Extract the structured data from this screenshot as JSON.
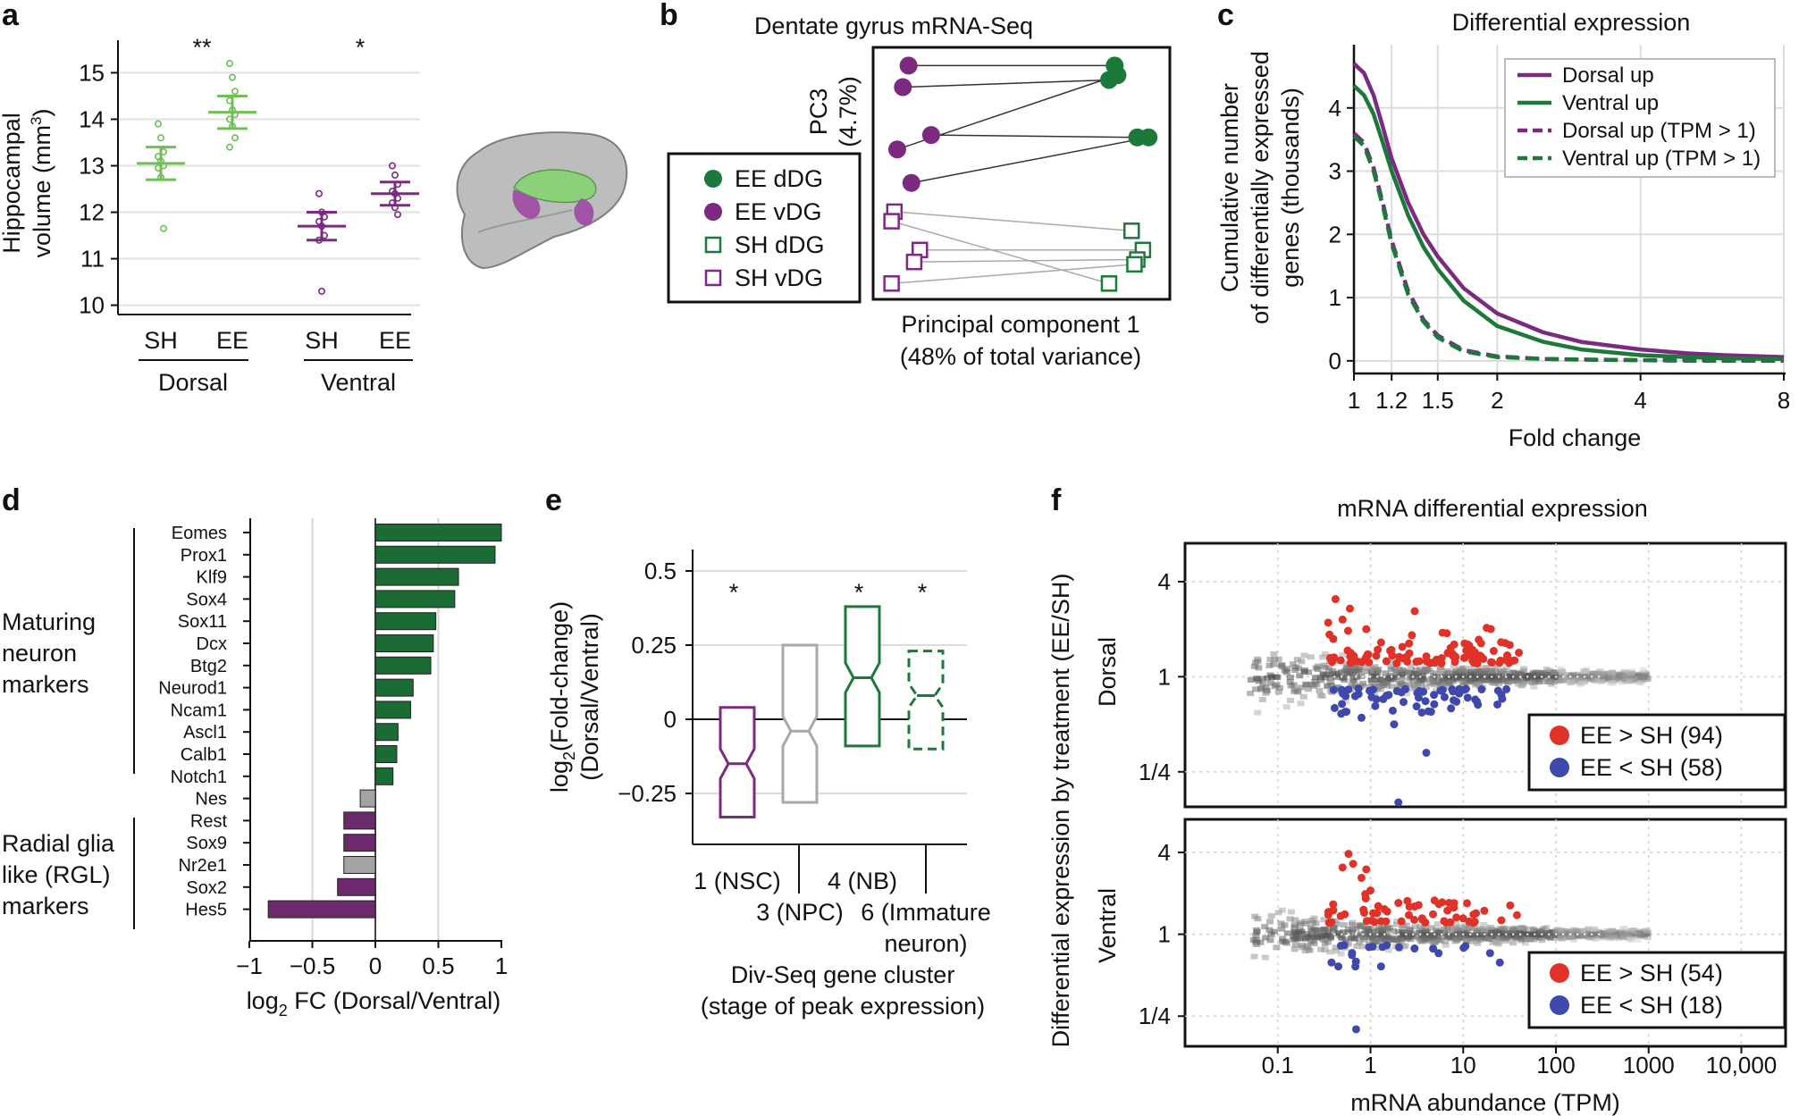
{
  "panel_letters": {
    "a": "a",
    "b": "b",
    "c": "c",
    "d": "d",
    "e": "e",
    "f": "f"
  },
  "chart_data": [
    {
      "panel": "a",
      "type": "scatter",
      "title": "",
      "ylabel_line1": "Hippocampal",
      "ylabel_line2": "volume (mm",
      "ylabel_sup": "3",
      "ylabel_close": ")",
      "ylim": [
        9.8,
        15.7
      ],
      "yticks": [
        10,
        11,
        12,
        13,
        14,
        15
      ],
      "categories": [
        "SH",
        "EE",
        "SH",
        "EE"
      ],
      "group_labels": [
        "Dorsal",
        "Ventral"
      ],
      "significance": [
        "**",
        "*"
      ],
      "colors": {
        "dorsal": "#6fbf57",
        "ventral": "#7a2a7f"
      },
      "groups": [
        {
          "name": "Dorsal SH",
          "mean": 13.05,
          "err": 0.35,
          "points": [
            13.9,
            13.6,
            13.3,
            13.2,
            13.1,
            13.0,
            12.95,
            12.75,
            11.65
          ]
        },
        {
          "name": "Dorsal EE",
          "mean": 14.15,
          "err": 0.35,
          "points": [
            15.2,
            14.9,
            14.6,
            14.4,
            14.2,
            14.1,
            14.0,
            13.85,
            13.6,
            13.4
          ]
        },
        {
          "name": "Ventral SH",
          "mean": 11.7,
          "err": 0.3,
          "points": [
            12.4,
            12.0,
            11.9,
            11.8,
            11.7,
            11.5,
            11.4,
            10.3
          ]
        },
        {
          "name": "Ventral EE",
          "mean": 12.4,
          "err": 0.25,
          "points": [
            13.0,
            12.8,
            12.6,
            12.45,
            12.4,
            12.3,
            12.2,
            12.1,
            11.95
          ]
        }
      ]
    },
    {
      "panel": "b",
      "type": "scatter",
      "title": "Dentate gyrus mRNA-Seq",
      "xlabel_line1": "Principal component 1",
      "xlabel_line2": "(48% of total variance)",
      "ylabel_line1": "PC3",
      "ylabel_line2": "(4.7%)",
      "legend": [
        {
          "label": "EE dDG",
          "color": "#1b7a3a",
          "marker": "filled-circle"
        },
        {
          "label": "EE vDG",
          "color": "#7a2a7f",
          "marker": "filled-circle"
        },
        {
          "label": "SH dDG",
          "color": "#1b7a3a",
          "marker": "open-square"
        },
        {
          "label": "SH vDG",
          "color": "#7a2a7f",
          "marker": "open-square"
        }
      ],
      "xlim": [
        0,
        10
      ],
      "ylim": [
        0,
        10
      ],
      "series": [
        {
          "name": "EE dDG",
          "points": [
            [
              8.3,
              9.5
            ],
            [
              8.1,
              8.9
            ],
            [
              8.4,
              9.1
            ],
            [
              9.1,
              6.5
            ],
            [
              9.5,
              6.5
            ]
          ]
        },
        {
          "name": "EE vDG",
          "points": [
            [
              1.0,
              9.5
            ],
            [
              0.8,
              8.6
            ],
            [
              0.6,
              6.0
            ],
            [
              1.8,
              6.6
            ],
            [
              1.1,
              4.6
            ]
          ]
        },
        {
          "name": "SH dDG",
          "points": [
            [
              8.9,
              2.6
            ],
            [
              9.3,
              1.8
            ],
            [
              9.1,
              1.4
            ],
            [
              8.1,
              0.4
            ],
            [
              9.0,
              1.2
            ]
          ]
        },
        {
          "name": "SH vDG",
          "points": [
            [
              0.5,
              3.4
            ],
            [
              0.4,
              3.0
            ],
            [
              1.4,
              1.8
            ],
            [
              1.2,
              1.3
            ],
            [
              0.4,
              0.4
            ]
          ]
        }
      ],
      "pairs": [
        [
          [
            1.0,
            9.5
          ],
          [
            8.3,
            9.5
          ]
        ],
        [
          [
            0.8,
            8.6
          ],
          [
            8.1,
            8.9
          ]
        ],
        [
          [
            0.6,
            6.0
          ],
          [
            8.4,
            9.1
          ]
        ],
        [
          [
            1.8,
            6.6
          ],
          [
            9.1,
            6.5
          ]
        ],
        [
          [
            1.1,
            4.6
          ],
          [
            9.5,
            6.5
          ]
        ],
        [
          [
            0.5,
            3.4
          ],
          [
            8.9,
            2.6
          ]
        ],
        [
          [
            0.4,
            3.0
          ],
          [
            8.1,
            0.4
          ]
        ],
        [
          [
            1.4,
            1.8
          ],
          [
            9.3,
            1.8
          ]
        ],
        [
          [
            1.2,
            1.3
          ],
          [
            9.1,
            1.4
          ]
        ],
        [
          [
            0.4,
            0.4
          ],
          [
            9.0,
            1.2
          ]
        ]
      ]
    },
    {
      "panel": "c",
      "type": "line",
      "title": "Differential expression",
      "xlabel": "Fold change",
      "ylabel_line1": "Cumulative number",
      "ylabel_line2": "of differentially expressed",
      "ylabel_line3": "genes (thousands)",
      "xscale": "log",
      "xlim": [
        1,
        8
      ],
      "ylim": [
        -0.2,
        5.0
      ],
      "xticks": [
        1,
        1.2,
        1.5,
        2,
        4,
        8
      ],
      "yticks": [
        0,
        1,
        2,
        3,
        4
      ],
      "x": [
        1.0,
        1.05,
        1.1,
        1.15,
        1.2,
        1.3,
        1.4,
        1.5,
        1.7,
        2.0,
        2.5,
        3.0,
        4.0,
        5.0,
        6.0,
        8.0
      ],
      "series": [
        {
          "name": "Dorsal up",
          "color": "#7a2a7f",
          "dashed": false,
          "values": [
            4.7,
            4.55,
            4.2,
            3.7,
            3.2,
            2.5,
            2.0,
            1.65,
            1.15,
            0.75,
            0.45,
            0.3,
            0.18,
            0.12,
            0.09,
            0.06
          ]
        },
        {
          "name": "Ventral up",
          "color": "#1b7a3a",
          "dashed": false,
          "values": [
            4.35,
            4.2,
            3.9,
            3.45,
            3.0,
            2.3,
            1.8,
            1.45,
            0.95,
            0.55,
            0.3,
            0.18,
            0.09,
            0.06,
            0.04,
            0.03
          ]
        },
        {
          "name": "Dorsal up (TPM > 1)",
          "color": "#7a2a7f",
          "dashed": true,
          "values": [
            3.6,
            3.45,
            3.05,
            2.5,
            1.9,
            1.1,
            0.65,
            0.4,
            0.17,
            0.07,
            0.03,
            0.02,
            0.01,
            0.01,
            0.0,
            0.0
          ]
        },
        {
          "name": "Ventral up (TPM > 1)",
          "color": "#1b7a3a",
          "dashed": true,
          "values": [
            3.55,
            3.4,
            3.0,
            2.45,
            1.85,
            1.05,
            0.62,
            0.37,
            0.15,
            0.06,
            0.03,
            0.02,
            0.01,
            0.0,
            0.0,
            0.0
          ]
        }
      ]
    },
    {
      "panel": "d",
      "type": "bar",
      "orientation": "horizontal",
      "xlabel_prefix": "log",
      "xlabel_sub": "2",
      "xlabel_rest": " FC (Dorsal/Ventral)",
      "xlim": [
        -1,
        1
      ],
      "xticks": [
        "−1",
        "−0.5",
        "0",
        "0.5",
        "1"
      ],
      "xtick_values": [
        -1,
        -0.5,
        0,
        0.5,
        1
      ],
      "groups": [
        {
          "label_lines": [
            "Maturing",
            "neuron",
            "markers"
          ]
        },
        {
          "label_lines": [
            "Radial glia",
            "like (RGL)",
            "markers"
          ]
        }
      ],
      "categories": [
        "Eomes",
        "Prox1",
        "Klf9",
        "Sox4",
        "Sox11",
        "Dcx",
        "Btg2",
        "Neurod1",
        "Ncam1",
        "Ascl1",
        "Calb1",
        "Notch1",
        "Nes",
        "Rest",
        "Sox9",
        "Nr2e1",
        "Sox2",
        "Hes5"
      ],
      "values": [
        1.0,
        0.95,
        0.66,
        0.63,
        0.48,
        0.46,
        0.44,
        0.3,
        0.28,
        0.18,
        0.17,
        0.14,
        -0.12,
        -0.25,
        -0.25,
        -0.25,
        -0.3,
        -0.85
      ],
      "bar_colors": [
        "#1b6b35",
        "#1b6b35",
        "#1b6b35",
        "#1b6b35",
        "#1b6b35",
        "#1b6b35",
        "#1b6b35",
        "#1b6b35",
        "#1b6b35",
        "#1b6b35",
        "#1b6b35",
        "#1b6b35",
        "#a3a3a3",
        "#6b2a6b",
        "#6b2a6b",
        "#a3a3a3",
        "#6b2a6b",
        "#6b2a6b"
      ]
    },
    {
      "panel": "e",
      "type": "box",
      "ylabel_line1_prefix": "log",
      "ylabel_line1_sub": "2",
      "ylabel_line1_rest": "(Fold-change)",
      "ylabel_line2": "(Dorsal/Ventral)",
      "xlabel_line1": "Div-Seq gene cluster",
      "xlabel_line2": "(stage of peak expression)",
      "ylim": [
        -0.35,
        0.6
      ],
      "yticks": [
        0.5,
        0.25,
        0,
        -0.25
      ],
      "ytick_labels": [
        "0.5",
        "0.25",
        "0",
        "−0.25"
      ],
      "categories": [
        "1 (NSC)",
        "3 (NPC)",
        "4 (NB)",
        "6 (Immature",
        "neuron)"
      ],
      "boxes": [
        {
          "name": "1 (NSC)",
          "q1": -0.33,
          "median": -0.15,
          "q3": 0.04,
          "notch": 0.05,
          "color": "#7a2a7f",
          "dashed": false,
          "star": "*"
        },
        {
          "name": "3 (NPC)",
          "q1": -0.28,
          "median": -0.04,
          "q3": 0.25,
          "notch": 0.05,
          "color": "#a8a8a8",
          "dashed": false,
          "star": ""
        },
        {
          "name": "4 (NB)",
          "q1": -0.09,
          "median": 0.14,
          "q3": 0.38,
          "notch": 0.05,
          "color": "#1b7a3a",
          "dashed": false,
          "star": "*"
        },
        {
          "name": "6 (Immature neuron)",
          "q1": -0.1,
          "median": 0.08,
          "q3": 0.23,
          "notch": 0.04,
          "color": "#1b7a3a",
          "dashed": true,
          "star": "*"
        }
      ]
    },
    {
      "panel": "f",
      "type": "scatter",
      "title": "mRNA differential expression",
      "xlabel": "mRNA abundance (TPM)",
      "ylabel": "Differential expression by treatment (EE/SH)",
      "xscale": "log",
      "yscale": "log2",
      "xlim": [
        0.01,
        30000
      ],
      "ylim": [
        0.15,
        7
      ],
      "xticks": [
        0.1,
        1,
        10,
        100,
        1000,
        10000
      ],
      "xtick_labels": [
        "0.1",
        "1",
        "10",
        "100",
        "1000",
        "10,000"
      ],
      "yticks": [
        0.25,
        1,
        4
      ],
      "ytick_labels": [
        "1/4",
        "1",
        "4"
      ],
      "subplots": [
        {
          "name": "Dorsal",
          "legend": [
            {
              "label": "EE > SH (94)",
              "color": "#e03228"
            },
            {
              "label": "EE < SH (58)",
              "color": "#3f49ad"
            }
          ],
          "up_count": 94,
          "down_count": 58,
          "outliers": [
            [
              0.42,
              3.1
            ],
            [
              0.6,
              2.7
            ],
            [
              0.5,
              2.3
            ],
            [
              0.35,
              2.2
            ],
            [
              0.9,
              2.0
            ],
            [
              3.0,
              2.6
            ],
            [
              6.0,
              1.9
            ],
            [
              8.0,
              1.6
            ],
            [
              0.55,
              0.6
            ],
            [
              0.8,
              0.55
            ],
            [
              1.8,
              0.5
            ],
            [
              4.5,
              0.6
            ],
            [
              2.0,
              0.16
            ],
            [
              4.0,
              0.33
            ]
          ]
        },
        {
          "name": "Ventral",
          "legend": [
            {
              "label": "EE > SH (54)",
              "color": "#e03228"
            },
            {
              "label": "EE < SH (18)",
              "color": "#3f49ad"
            }
          ],
          "up_count": 54,
          "down_count": 18,
          "outliers": [
            [
              0.58,
              3.9
            ],
            [
              0.65,
              3.3
            ],
            [
              0.9,
              3.0
            ],
            [
              0.5,
              3.1
            ],
            [
              0.8,
              2.6
            ],
            [
              1.0,
              2.1
            ],
            [
              3.0,
              1.6
            ],
            [
              2.0,
              1.7
            ],
            [
              0.38,
              0.62
            ],
            [
              0.45,
              0.58
            ],
            [
              1.3,
              0.58
            ],
            [
              0.7,
              0.2
            ]
          ]
        }
      ]
    }
  ]
}
